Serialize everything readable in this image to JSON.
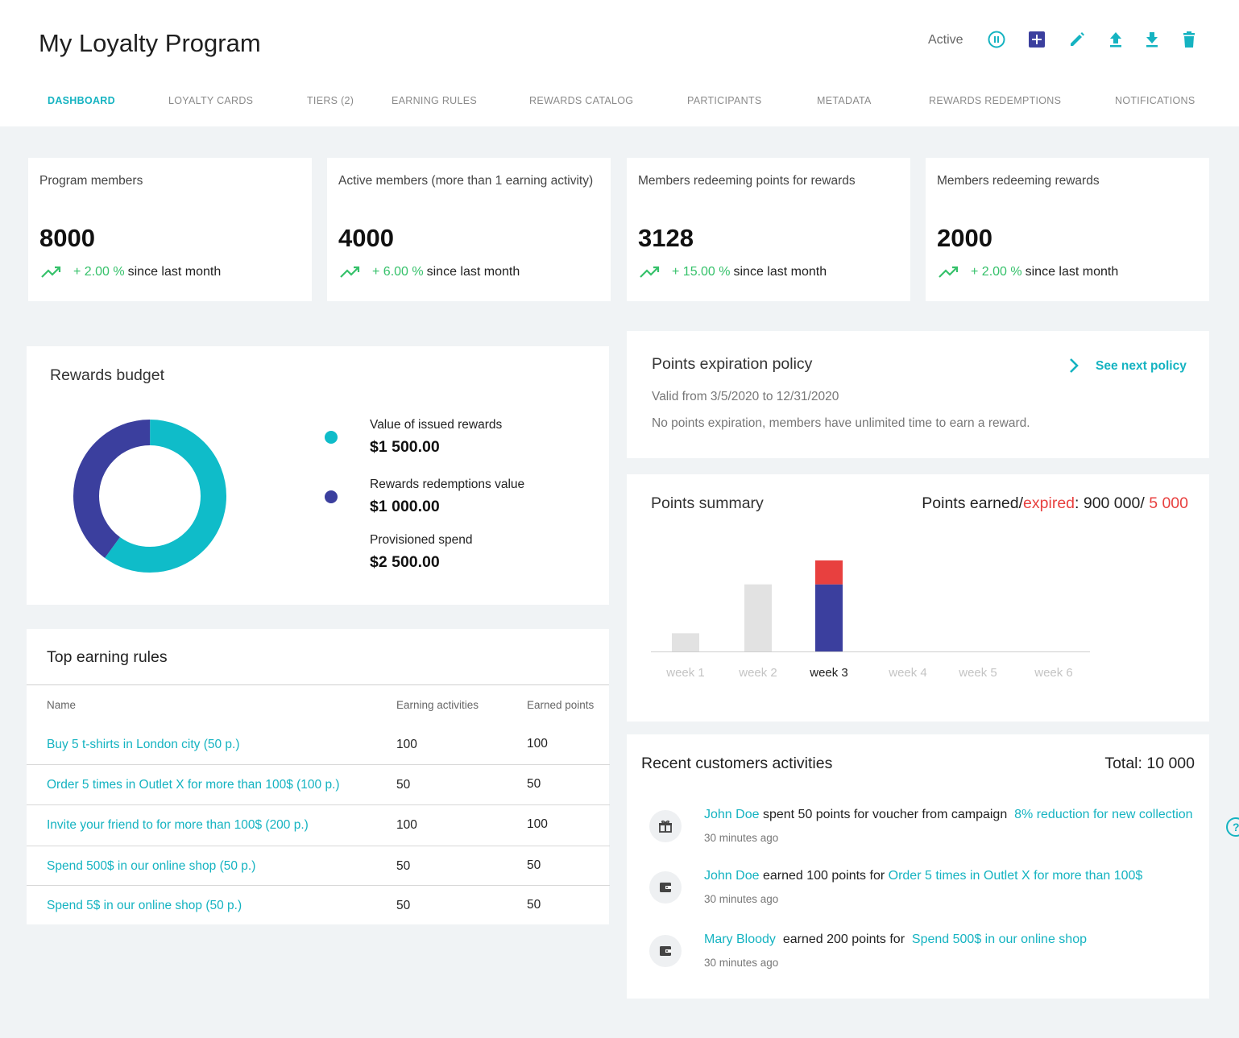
{
  "header": {
    "title": "My Loyalty Program",
    "status": "Active",
    "actions": [
      "pause-icon",
      "add-icon",
      "edit-icon",
      "upload-icon",
      "download-icon",
      "delete-icon"
    ]
  },
  "tabs": [
    {
      "label": "DASHBOARD",
      "active": true
    },
    {
      "label": "LOYALTY CARDS"
    },
    {
      "label": "TIERS (2)"
    },
    {
      "label": "EARNING RULES"
    },
    {
      "label": "REWARDS CATALOG"
    },
    {
      "label": "PARTICIPANTS"
    },
    {
      "label": "METADATA"
    },
    {
      "label": "REWARDS REDEMPTIONS"
    },
    {
      "label": "NOTIFICATIONS"
    }
  ],
  "stats": [
    {
      "label": "Program members",
      "value": "8000",
      "change": "+ 2.00 %",
      "since": "since last month"
    },
    {
      "label": "Active members (more than 1 earning activity)",
      "value": "4000",
      "change": "+ 6.00 %",
      "since": "since last month"
    },
    {
      "label": "Members redeeming points for rewards",
      "value": "3128",
      "change": "+ 15.00 %",
      "since": "since last month"
    },
    {
      "label": "Members redeeming rewards",
      "value": "2000",
      "change": "+ 2.00 %",
      "since": "since last month"
    }
  ],
  "budget": {
    "title": "Rewards budget",
    "items": [
      {
        "label": "Value of issued rewards",
        "value": "$1 500.00",
        "amount": 1500,
        "color": "#0fbcc9"
      },
      {
        "label": "Rewards redemptions value",
        "value": "$1 000.00",
        "amount": 1000,
        "color": "#3b3f9e"
      },
      {
        "label": "Provisioned spend",
        "value": "$2 500.00"
      }
    ]
  },
  "policy": {
    "title": "Points expiration policy",
    "next_label": "See next policy",
    "valid": "Valid from 3/5/2020 to 12/31/2020",
    "description": "No points expiration, members have unlimited time to earn a reward."
  },
  "points": {
    "title": "Points summary",
    "summary_prefix": "Points earned/",
    "summary_expired_word": "expired",
    "summary_mid": ": 900 000/ ",
    "summary_expired_value": "5 000",
    "colors": {
      "past": "#e2e2e2",
      "earned": "#3b3f9e",
      "expired": "#e8403f"
    }
  },
  "chart_data": {
    "type": "bar",
    "categories": [
      "week 1",
      "week 2",
      "week 3",
      "week 4",
      "week 5",
      "week 6"
    ],
    "current": "week 3",
    "series": [
      {
        "values": [
          0,
          0,
          140000,
          0,
          0,
          0
        ]
      },
      {
        "values": [
          0,
          0,
          50000,
          0,
          0,
          0
        ]
      },
      {
        "values": [
          38000,
          140000,
          0,
          0,
          0,
          0
        ]
      }
    ],
    "ylim": [
      0,
      210000
    ]
  },
  "earning_rules": {
    "title": "Top earning rules",
    "columns": [
      "Name",
      "Earning activities",
      "Earned points"
    ],
    "rows": [
      {
        "name": "Buy 5 t-shirts in London city (50 p.)",
        "activities": "100",
        "points": "100"
      },
      {
        "name": "Order 5 times in Outlet X for more than 100$ (100 p.)",
        "activities": "50",
        "points": "50"
      },
      {
        "name": "Invite your friend to for more than 100$ (200 p.)",
        "activities": "100",
        "points": "100"
      },
      {
        "name": "Spend 500$ in our online shop (50 p.)",
        "activities": "50",
        "points": "50"
      },
      {
        "name": "Spend 5$ in our online shop (50 p.)",
        "activities": "50",
        "points": "50"
      }
    ]
  },
  "activities": {
    "title": "Recent customers activities",
    "total": "Total: 10 000",
    "items": [
      {
        "icon": "gift-icon",
        "user": "John Doe",
        "text": "spent 50 points for voucher from campaign",
        "target": "8% reduction for new collection",
        "time": "30 minutes ago"
      },
      {
        "icon": "wallet-icon",
        "user": "John Doe",
        "text": "earned 100 points for",
        "target": "Order 5 times in Outlet X for more than 100$",
        "time": "30 minutes ago"
      },
      {
        "icon": "wallet-icon",
        "user": "Mary Bloody",
        "text": "earned 200 points for",
        "target": "Spend 500$ in our online shop",
        "time": "30 minutes ago"
      }
    ]
  },
  "help": {
    "icon": "help-icon"
  }
}
